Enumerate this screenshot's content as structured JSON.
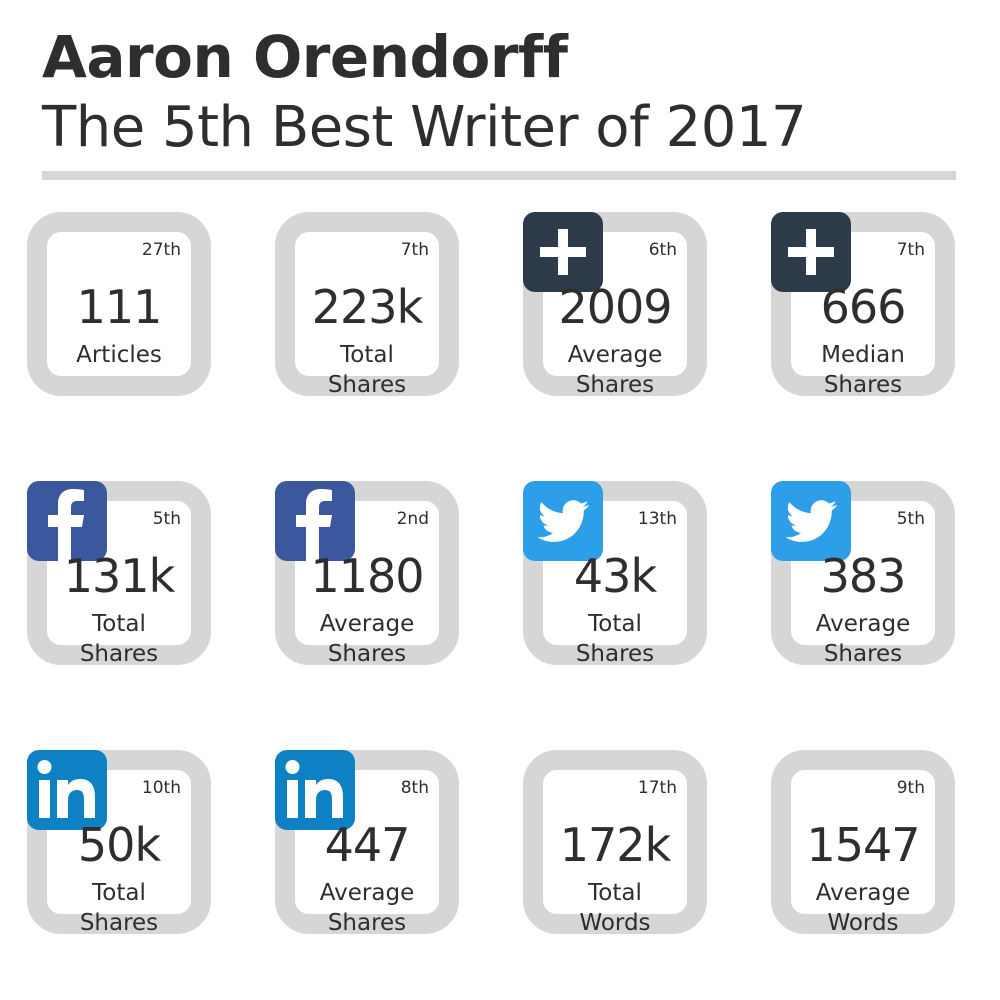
{
  "header": {
    "title": "Aaron Orendorff",
    "subtitle": "The 5th Best Writer of 2017"
  },
  "colors": {
    "card_border": "#d6d6d6",
    "rule": "#d6d6d6",
    "plus_badge": "#2d3a4a",
    "facebook": "#3b579d",
    "twitter": "#2d9ee8",
    "linkedin": "#0e80c4"
  },
  "cards": [
    {
      "rank": "27th",
      "value": "111",
      "label1": "Articles",
      "label2": "",
      "icon": ""
    },
    {
      "rank": "7th",
      "value": "223k",
      "label1": "Total",
      "label2": "Shares",
      "icon": ""
    },
    {
      "rank": "6th",
      "value": "2009",
      "label1": "Average",
      "label2": "Shares",
      "icon": "plus-icon"
    },
    {
      "rank": "7th",
      "value": "666",
      "label1": "Median",
      "label2": "Shares",
      "icon": "plus-icon"
    },
    {
      "rank": "5th",
      "value": "131k",
      "label1": "Total",
      "label2": "Shares",
      "icon": "facebook-icon"
    },
    {
      "rank": "2nd",
      "value": "1180",
      "label1": "Average",
      "label2": "Shares",
      "icon": "facebook-icon"
    },
    {
      "rank": "13th",
      "value": "43k",
      "label1": "Total",
      "label2": "Shares",
      "icon": "twitter-icon"
    },
    {
      "rank": "5th",
      "value": "383",
      "label1": "Average",
      "label2": "Shares",
      "icon": "twitter-icon"
    },
    {
      "rank": "10th",
      "value": "50k",
      "label1": "Total",
      "label2": "Shares",
      "icon": "linkedin-icon"
    },
    {
      "rank": "8th",
      "value": "447",
      "label1": "Average",
      "label2": "Shares",
      "icon": "linkedin-icon"
    },
    {
      "rank": "17th",
      "value": "172k",
      "label1": "Total",
      "label2": "Words",
      "icon": ""
    },
    {
      "rank": "9th",
      "value": "1547",
      "label1": "Average",
      "label2": "Words",
      "icon": ""
    }
  ]
}
